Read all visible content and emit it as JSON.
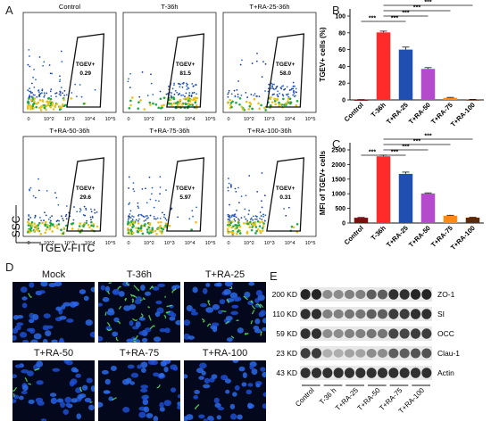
{
  "panel_letters": {
    "A": "A",
    "B": "B",
    "C": "C",
    "D": "D",
    "E": "E"
  },
  "flow": {
    "ylabel": "SSC",
    "xlabel": "TGEV-FITC",
    "gate_label": "TGEV+",
    "xticks": [
      "0",
      "10^2",
      "10^3",
      "10^4",
      "10^5"
    ],
    "plots": [
      {
        "title": "Control",
        "value": "0.29"
      },
      {
        "title": "T-36h",
        "value": "81.5"
      },
      {
        "title": "T+RA-25-36h",
        "value": "58.0"
      },
      {
        "title": "T+RA-50-36h",
        "value": "29.6"
      },
      {
        "title": "T+RA-75-36h",
        "value": "5.97"
      },
      {
        "title": "T+RA-100-36h",
        "value": "0.31"
      }
    ]
  },
  "chart_data": [
    {
      "type": "bar",
      "panel": "B",
      "ylabel": "TGEV+ cells (%)",
      "ylim": [
        0,
        100
      ],
      "yticks": [
        0,
        20,
        40,
        60,
        80,
        100
      ],
      "categories": [
        "Control",
        "T-36h",
        "T+RA-25",
        "T+RA-50",
        "T+RA-75",
        "T+RA-100"
      ],
      "values": [
        0.3,
        80.5,
        60,
        37,
        2.5,
        0.5
      ],
      "errors": [
        0.1,
        1.5,
        3,
        1.5,
        0.5,
        0.1
      ],
      "colors": [
        "#7a1010",
        "#ff2a2a",
        "#1f4fb0",
        "#b44bcc",
        "#ff8a1a",
        "#5a2a0a"
      ],
      "significance": [
        "***",
        "***",
        "***",
        "***",
        "***"
      ]
    },
    {
      "type": "bar",
      "panel": "C",
      "ylabel": "MFI of TGEV+ cells",
      "ylim": [
        0,
        2500
      ],
      "yticks": [
        0,
        500,
        1000,
        1500,
        2000,
        2500
      ],
      "categories": [
        "Control",
        "T-36h",
        "T+RA-25",
        "T+RA-50",
        "T+RA-75",
        "T+RA-100"
      ],
      "values": [
        180,
        2280,
        1680,
        1010,
        250,
        185
      ],
      "errors": [
        10,
        40,
        60,
        20,
        15,
        10
      ],
      "colors": [
        "#7a1010",
        "#ff2a2a",
        "#1f4fb0",
        "#b44bcc",
        "#ff8a1a",
        "#5a2a0a"
      ],
      "significance": [
        "***",
        "***",
        "***",
        "***",
        "***"
      ]
    }
  ],
  "micro": {
    "titles": [
      "Mock",
      "T-36h",
      "T+RA-25",
      "T+RA-50",
      "T+RA-75",
      "T+RA-100"
    ]
  },
  "blot": {
    "rows": [
      {
        "kd": "200 KD",
        "protein": "ZO-1"
      },
      {
        "kd": "110 KD",
        "protein": "SI"
      },
      {
        "kd": "59 KD",
        "protein": "OCC"
      },
      {
        "kd": "23 KD",
        "protein": "Clau-1"
      },
      {
        "kd": "43 KD",
        "protein": "Actin"
      }
    ],
    "lanes": [
      "Control",
      "T-36 h",
      "T+RA-25",
      "T+RA-50",
      "T+RA-75",
      "T+RA-100"
    ]
  }
}
